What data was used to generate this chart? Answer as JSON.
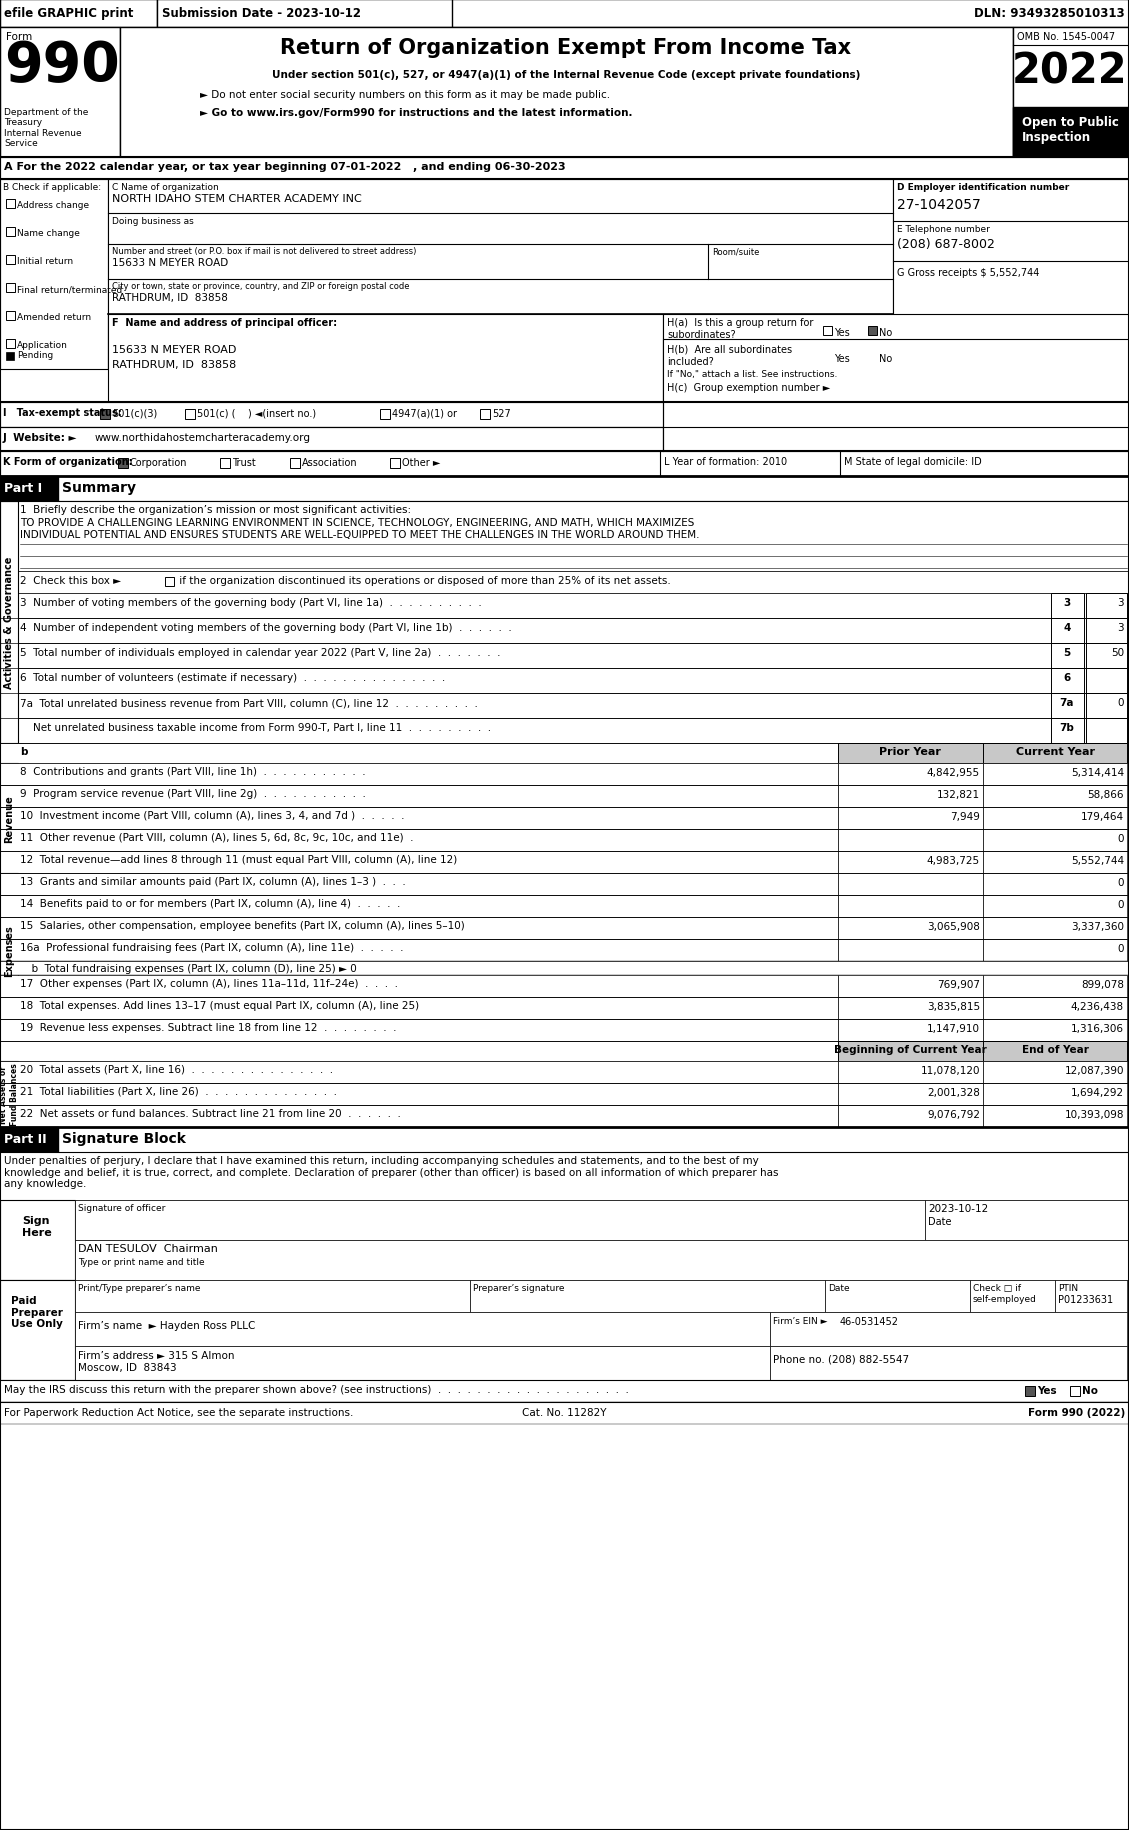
{
  "header_bar_text": "efile GRAPHIC print",
  "submission_date": "Submission Date - 2023-10-12",
  "dln": "DLN: 93493285010313",
  "form_label": "Form",
  "form_number": "990",
  "title": "Return of Organization Exempt From Income Tax",
  "subtitle1": "Under section 501(c), 527, or 4947(a)(1) of the Internal Revenue Code (except private foundations)",
  "subtitle2": "► Do not enter social security numbers on this form as it may be made public.",
  "subtitle3": "► Go to www.irs.gov/Form990 for instructions and the latest information.",
  "year": "2022",
  "omb": "OMB No. 1545-0047",
  "open_to_public": "Open to Public\nInspection",
  "dept_treasury": "Department of the\nTreasury\nInternal Revenue\nService",
  "line_A": "A For the 2022 calendar year, or tax year beginning 07-01-2022   , and ending 06-30-2023",
  "line_B_label": "B Check if applicable:",
  "line_C_label": "C Name of organization",
  "org_name": "NORTH IDAHO STEM CHARTER ACADEMY INC",
  "doing_business_as": "Doing business as",
  "address_label": "Number and street (or P.O. box if mail is not delivered to street address)",
  "address": "15633 N MEYER ROAD",
  "room_suite": "Room/suite",
  "city_label": "City or town, state or province, country, and ZIP or foreign postal code",
  "city": "RATHDRUM, ID  83858",
  "line_D_label": "D Employer identification number",
  "ein": "27-1042057",
  "line_E_label": "E Telephone number",
  "phone": "(208) 687-8002",
  "gross_receipts": "G Gross receipts $ 5,552,744",
  "principal_officer_label": "F  Name and address of principal officer:",
  "po_address1": "15633 N MEYER ROAD",
  "po_address2": "RATHDRUM, ID  83858",
  "ha_line1": "H(a)  Is this a group return for",
  "ha_line2": "subordinates?",
  "ha_yes": "Yes",
  "ha_no": "No",
  "hb_line1": "H(b)  Are all subordinates",
  "hb_line2": "included?",
  "hb_yes": "Yes",
  "hb_no": "No",
  "if_no": "If \"No,\" attach a list. See instructions.",
  "hc_label": "H(c)  Group exemption number ►",
  "tax_exempt_label": "I   Tax-exempt status:",
  "tax_501c3": "501(c)(3)",
  "tax_501c": "501(c) (    ) ◄(insert no.)",
  "tax_4947": "4947(a)(1) or",
  "tax_527": "527",
  "website_label": "J  Website: ►",
  "website": "www.northidahostemcharteracademy.org",
  "K_label": "K Form of organization:",
  "L_label": "L Year of formation: 2010",
  "M_label": "M State of legal domicile: ID",
  "part1_label": "Part I",
  "part1_title": "Summary",
  "line1_label": "1  Briefly describe the organization’s mission or most significant activities:",
  "line1_text1": "TO PROVIDE A CHALLENGING LEARNING ENVIRONMENT IN SCIENCE, TECHNOLOGY, ENGINEERING, AND MATH, WHICH MAXIMIZES",
  "line1_text2": "INDIVIDUAL POTENTIAL AND ENSURES STUDENTS ARE WELL-EQUIPPED TO MEET THE CHALLENGES IN THE WORLD AROUND THEM.",
  "line2_text": "2  Check this box ►□ if the organization discontinued its operations or disposed of more than 25% of its net assets.",
  "line3_text": "3  Number of voting members of the governing body (Part VI, line 1a)  .  .  .  .  .  .  .  .  .  .",
  "line3_num": "3",
  "line3_val": "3",
  "line4_text": "4  Number of independent voting members of the governing body (Part VI, line 1b)  .  .  .  .  .  .",
  "line4_num": "4",
  "line4_val": "3",
  "line5_text": "5  Total number of individuals employed in calendar year 2022 (Part V, line 2a)  .  .  .  .  .  .  .",
  "line5_num": "5",
  "line5_val": "50",
  "line6_text": "6  Total number of volunteers (estimate if necessary)  .  .  .  .  .  .  .  .  .  .  .  .  .  .  .",
  "line6_num": "6",
  "line6_val": "",
  "line7a_text": "7a  Total unrelated business revenue from Part VIII, column (C), line 12  .  .  .  .  .  .  .  .  .",
  "line7a_num": "7a",
  "line7a_val": "0",
  "line7b_text": "    Net unrelated business taxable income from Form 990-T, Part I, line 11  .  .  .  .  .  .  .  .  .",
  "line7b_num": "7b",
  "line7b_val": "",
  "prior_year": "Prior Year",
  "current_year": "Current Year",
  "line8_text": "8  Contributions and grants (Part VIII, line 1h)  .  .  .  .  .  .  .  .  .  .  .",
  "line8_prior": "4,842,955",
  "line8_current": "5,314,414",
  "line9_text": "9  Program service revenue (Part VIII, line 2g)  .  .  .  .  .  .  .  .  .  .  .",
  "line9_prior": "132,821",
  "line9_current": "58,866",
  "line10_text": "10  Investment income (Part VIII, column (A), lines 3, 4, and 7d )  .  .  .  .  .",
  "line10_prior": "7,949",
  "line10_current": "179,464",
  "line11_text": "11  Other revenue (Part VIII, column (A), lines 5, 6d, 8c, 9c, 10c, and 11e)  .",
  "line11_prior": "",
  "line11_current": "0",
  "line12_text": "12  Total revenue—add lines 8 through 11 (must equal Part VIII, column (A), line 12)",
  "line12_prior": "4,983,725",
  "line12_current": "5,552,744",
  "line13_text": "13  Grants and similar amounts paid (Part IX, column (A), lines 1–3 )  .  .  .",
  "line13_prior": "",
  "line13_current": "0",
  "line14_text": "14  Benefits paid to or for members (Part IX, column (A), line 4)  .  .  .  .  .",
  "line14_prior": "",
  "line14_current": "0",
  "line15_text": "15  Salaries, other compensation, employee benefits (Part IX, column (A), lines 5–10)",
  "line15_prior": "3,065,908",
  "line15_current": "3,337,360",
  "line16a_text": "16a  Professional fundraising fees (Part IX, column (A), line 11e)  .  .  .  .  .",
  "line16a_prior": "",
  "line16a_current": "0",
  "line16b_text": "  b  Total fundraising expenses (Part IX, column (D), line 25) ► 0",
  "line17_text": "17  Other expenses (Part IX, column (A), lines 11a–11d, 11f–24e)  .  .  .  .",
  "line17_prior": "769,907",
  "line17_current": "899,078",
  "line18_text": "18  Total expenses. Add lines 13–17 (must equal Part IX, column (A), line 25)",
  "line18_prior": "3,835,815",
  "line18_current": "4,236,438",
  "line19_text": "19  Revenue less expenses. Subtract line 18 from line 12  .  .  .  .  .  .  .  .",
  "line19_prior": "1,147,910",
  "line19_current": "1,316,306",
  "beg_year": "Beginning of Current Year",
  "end_year": "End of Year",
  "line20_text": "20  Total assets (Part X, line 16)  .  .  .  .  .  .  .  .  .  .  .  .  .  .  .",
  "line20_beg": "11,078,120",
  "line20_end": "12,087,390",
  "line21_text": "21  Total liabilities (Part X, line 26)  .  .  .  .  .  .  .  .  .  .  .  .  .  .",
  "line21_beg": "2,001,328",
  "line21_end": "1,694,292",
  "line22_text": "22  Net assets or fund balances. Subtract line 21 from line 20  .  .  .  .  .  .",
  "line22_beg": "9,076,792",
  "line22_end": "10,393,098",
  "part2_label": "Part II",
  "part2_title": "Signature Block",
  "sig_text": "Under penalties of perjury, I declare that I have examined this return, including accompanying schedules and statements, and to the best of my\nknowledge and belief, it is true, correct, and complete. Declaration of preparer (other than officer) is based on all information of which preparer has\nany knowledge.",
  "sign_here": "Sign\nHere",
  "sig_date": "2023-10-12",
  "sig_date_label": "Date",
  "officer_name": "DAN TESULOV  Chairman",
  "officer_title": "Type or print name and title",
  "paid_preparer": "Paid\nPreparer\nUse Only",
  "preparer_name_label": "Print/Type preparer’s name",
  "preparer_sig_label": "Preparer’s signature",
  "preparer_date_label": "Date",
  "check_se_label": "Check □ if",
  "check_se_label2": "self-employed",
  "ptin_label": "PTIN",
  "ptin": "P01233631",
  "firm_name": "Firm’s name  ► Hayden Ross PLLC",
  "firm_ein_label": "Firm’s EIN ►",
  "firm_ein": "46-0531452",
  "firm_address": "Firm’s address ► 315 S Almon",
  "firm_city": "Moscow, ID  83843",
  "phone_no": "Phone no. (208) 882-5547",
  "discuss_label": "May the IRS discuss this return with the preparer shown above? (see instructions)  .  .  .  .  .  .  .  .  .  .  .  .  .  .  .  .  .  .  .  .",
  "discuss_yes": "Yes",
  "discuss_no": "No",
  "paperwork_text": "For Paperwork Reduction Act Notice, see the separate instructions.",
  "cat_no": "Cat. No. 11282Y",
  "form_footer": "Form 990 (2022)"
}
